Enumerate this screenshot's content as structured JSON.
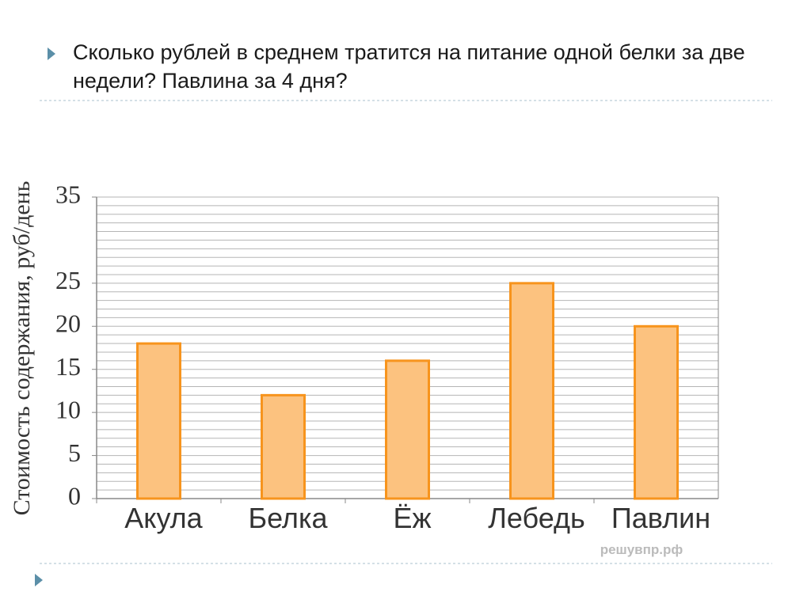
{
  "slide": {
    "question": "Сколько рублей в среднем тратится на питание одной белки за две недели? Павлина за 4 дня?",
    "watermark": "решувпр.рф"
  },
  "chart_data": {
    "type": "bar",
    "ylabel": "Стоимость содержания, руб/день",
    "categories": [
      "Акула",
      "Белка",
      "Ёж",
      "Лебедь",
      "Павлин"
    ],
    "values": [
      18,
      12,
      16,
      25,
      20
    ],
    "color": "#fcc27f",
    "edge_color": "#f7941d",
    "ylim": [
      0,
      35
    ],
    "yticks": [
      0,
      5,
      10,
      15,
      20,
      25,
      35
    ],
    "grid": true,
    "grid_lines": [
      1,
      2,
      3,
      4,
      5,
      6,
      7,
      8,
      9,
      10,
      11,
      12,
      13,
      14,
      15,
      16,
      17,
      18,
      19,
      20,
      21,
      22,
      23,
      24,
      25,
      26,
      27,
      28,
      29,
      30,
      31,
      32,
      33,
      34,
      35
    ]
  }
}
